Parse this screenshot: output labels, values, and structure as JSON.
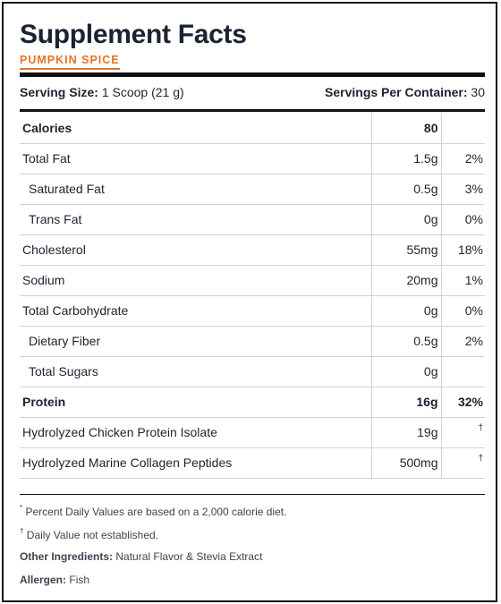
{
  "label": {
    "title": "Supplement Facts",
    "flavor": "PUMPKIN SPICE",
    "serving_size_label": "Serving Size:",
    "serving_size_value": "1 Scoop (21 g)",
    "servings_label": "Servings Per Container:",
    "servings_value": "30"
  },
  "rows": [
    {
      "name": "Calories",
      "amount": "80",
      "dv": "",
      "bold": true,
      "indent": false
    },
    {
      "name": "Total Fat",
      "amount": "1.5g",
      "dv": "2%",
      "bold": false,
      "indent": false
    },
    {
      "name": "Saturated Fat",
      "amount": "0.5g",
      "dv": "3%",
      "bold": false,
      "indent": true
    },
    {
      "name": "Trans Fat",
      "amount": "0g",
      "dv": "0%",
      "bold": false,
      "indent": true
    },
    {
      "name": "Cholesterol",
      "amount": "55mg",
      "dv": "18%",
      "bold": false,
      "indent": false
    },
    {
      "name": "Sodium",
      "amount": "20mg",
      "dv": "1%",
      "bold": false,
      "indent": false
    },
    {
      "name": "Total Carbohydrate",
      "amount": "0g",
      "dv": "0%",
      "bold": false,
      "indent": false
    },
    {
      "name": "Dietary Fiber",
      "amount": "0.5g",
      "dv": "2%",
      "bold": false,
      "indent": true
    },
    {
      "name": "Total Sugars",
      "amount": "0g",
      "dv": "",
      "bold": false,
      "indent": true
    },
    {
      "name": "Protein",
      "amount": "16g",
      "dv": "32%",
      "bold": true,
      "indent": false
    },
    {
      "name": "Hydrolyzed Chicken Protein Isolate",
      "amount": "19g",
      "dv": "†",
      "bold": false,
      "indent": false
    },
    {
      "name": "Hydrolyzed Marine Collagen Peptides",
      "amount": "500mg",
      "dv": "†",
      "bold": false,
      "indent": false
    }
  ],
  "footnotes": {
    "percent_mark": "*",
    "percent_text": "Percent Daily Values are based on a 2,000 calorie diet.",
    "dagger_mark": "†",
    "dagger_text": "Daily Value not established.",
    "other_label": "Other Ingredients:",
    "other_value": "Natural Flavor & Stevia Extract",
    "allergen_label": "Allergen:",
    "allergen_value": "Fish"
  },
  "colors": {
    "accent": "#e4732a",
    "text": "#1b2330",
    "rule": "#111111"
  }
}
